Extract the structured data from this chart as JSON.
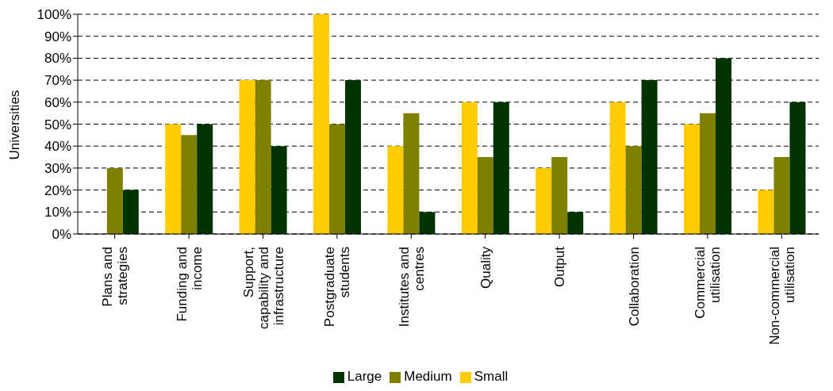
{
  "chart_data": {
    "type": "bar",
    "ylabel": "Universities",
    "categories": [
      "Plans and strategies",
      "Funding and income",
      "Support, capability and infrastructure",
      "Postgraduate students",
      "Institutes and centres",
      "Quality",
      "Output",
      "Collaboration",
      "Commercial utilisation",
      "Non-commercial utilisation"
    ],
    "series": [
      {
        "name": "Small",
        "color": "#ffcc00",
        "values": [
          0,
          50,
          70,
          100,
          40,
          60,
          30,
          60,
          50,
          20
        ]
      },
      {
        "name": "Medium",
        "color": "#808000",
        "values": [
          30,
          45,
          70,
          50,
          55,
          35,
          35,
          40,
          55,
          35
        ]
      },
      {
        "name": "Large",
        "color": "#003300",
        "values": [
          20,
          50,
          40,
          70,
          10,
          60,
          10,
          70,
          80,
          60
        ]
      }
    ],
    "ylim": [
      0,
      100
    ],
    "yticks": [
      {
        "value": 0,
        "label": "0%"
      },
      {
        "value": 10,
        "label": "10%"
      },
      {
        "value": 20,
        "label": "20%"
      },
      {
        "value": 30,
        "label": "30%"
      },
      {
        "value": 40,
        "label": "40%"
      },
      {
        "value": 50,
        "label": "50%"
      },
      {
        "value": 60,
        "label": "60%"
      },
      {
        "value": 70,
        "label": "70%"
      },
      {
        "value": 80,
        "label": "80%"
      },
      {
        "value": 90,
        "label": "90%"
      },
      {
        "value": 100,
        "label": "100%"
      }
    ],
    "grid": "y",
    "legend": "bottom"
  }
}
